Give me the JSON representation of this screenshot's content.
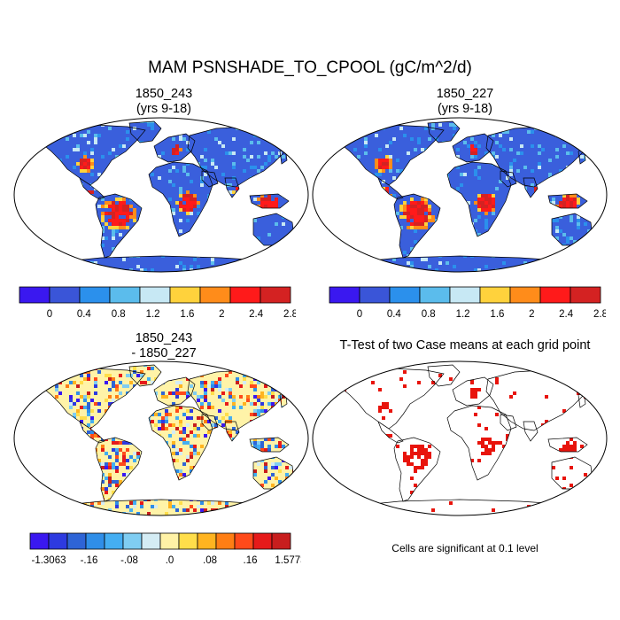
{
  "title": "MAM PSNSHADE_TO_CPOOL (gC/m^2/d)",
  "panels": [
    {
      "id": "top-left",
      "title": "1850_243",
      "subtitle": "(yrs 9-18)"
    },
    {
      "id": "top-right",
      "title": "1850_227",
      "subtitle": "(yrs 9-18)"
    },
    {
      "id": "bottom-left",
      "title": "1850_243",
      "subtitle": "- 1850_227"
    },
    {
      "id": "bottom-right",
      "title": "T-Test of two Case means at each grid point",
      "subtitle": ""
    }
  ],
  "colorbars": {
    "main": {
      "colors": [
        "#3a18f0",
        "#3a55d8",
        "#2b90ec",
        "#5bbcec",
        "#c7e8f4",
        "#ffd23c",
        "#ff8c1a",
        "#ff1a1a",
        "#d42222"
      ],
      "labels": [
        "0",
        "0.4",
        "0.8",
        "1.2",
        "1.6",
        "2",
        "2.4",
        "2.8"
      ]
    },
    "diff": {
      "colors": [
        "#3a18f0",
        "#2d3ae0",
        "#2e64d6",
        "#2f8ee8",
        "#44aef2",
        "#7fcdf2",
        "#d4ecf4",
        "#fff2a6",
        "#ffde4a",
        "#ffb420",
        "#ff7e14",
        "#ff4a1a",
        "#e61a1a",
        "#c81e1e"
      ],
      "labels": [
        "-1.3063",
        "-.16",
        "-.08",
        ".0",
        ".08",
        ".16",
        "1.5773"
      ]
    }
  },
  "significance_note": "Cells are significant at 0.1 level",
  "colors": {
    "land_base": "#3a5fdc",
    "diff_base": "#fff3a8",
    "sig": "#e8140c"
  }
}
